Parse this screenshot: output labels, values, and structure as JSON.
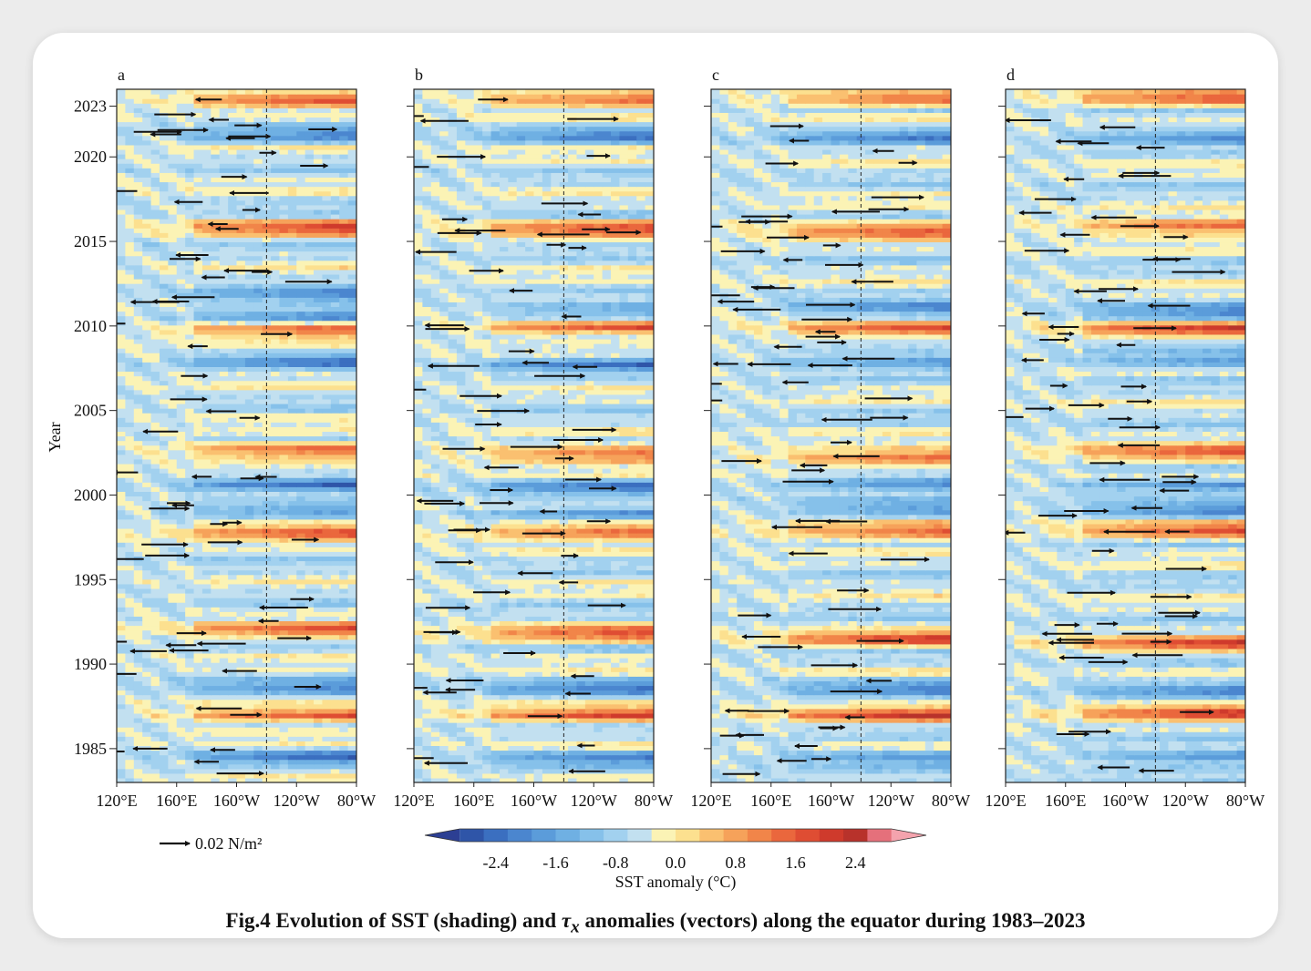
{
  "caption": {
    "prefix": "Fig.4 Evolution of SST (shading) and ",
    "symbol": "τ",
    "subscript": "x",
    "suffix": " anomalies (vectors) along the equator during 1983–2023"
  },
  "y_axis": {
    "label": "Year",
    "ticks": [
      "1985",
      "1990",
      "1995",
      "2000",
      "2005",
      "2010",
      "2015",
      "2020",
      "2023"
    ]
  },
  "x_axis": {
    "ticks": [
      "120°E",
      "160°E",
      "160°W",
      "120°W",
      "80°W"
    ]
  },
  "vector_key": {
    "label": "0.02 N/m²",
    "magnitude": 0.02
  },
  "colorbar": {
    "title": "SST anomaly (°C)",
    "tick_labels": [
      "-2.4",
      "-1.6",
      "-0.8",
      "0.0",
      "0.8",
      "1.6",
      "2.4"
    ],
    "colors": [
      "#2c3f93",
      "#2f55a8",
      "#3b6fc0",
      "#4b86cf",
      "#5b9cda",
      "#6fb0e3",
      "#86c1ea",
      "#a2d1ef",
      "#c2e0f0",
      "#fbf3b5",
      "#fce08f",
      "#fac070",
      "#f6a25a",
      "#f18549",
      "#ea673d",
      "#df4d33",
      "#cf3a2c",
      "#b8322b",
      "#e5707b",
      "#f4a3ad"
    ]
  },
  "chart_data": [
    {
      "type": "heatmap",
      "panel": "a",
      "x": [
        "120°E",
        "160°E",
        "160°W",
        "120°W",
        "80°W"
      ],
      "y_range": [
        1983,
        2024
      ],
      "dateline_lon": 180,
      "warm_events": [
        1987,
        1992,
        1997.9,
        2002.7,
        2009.8,
        2015.8,
        2023.5
      ],
      "cold_events": [
        1984.5,
        1988.6,
        1999.3,
        2000.6,
        2008,
        2010.7,
        2011.8,
        2021.3
      ]
    },
    {
      "type": "heatmap",
      "panel": "b",
      "x": [
        "120°E",
        "160°E",
        "160°W",
        "120°W",
        "80°W"
      ],
      "y_range": [
        1983,
        2024
      ],
      "dateline_lon": 180,
      "warm_events": [
        1987,
        1991.8,
        1997.9,
        2002.5,
        2009.9,
        2015.8,
        2023.5
      ],
      "cold_events": [
        1984.5,
        1988.6,
        1999,
        2000.5,
        2007.8,
        2010.9,
        2021.3
      ]
    },
    {
      "type": "heatmap",
      "panel": "c",
      "x": [
        "120°E",
        "160°E",
        "160°W",
        "120°W",
        "80°W"
      ],
      "y_range": [
        1983,
        2024
      ],
      "dateline_lon": 180,
      "warm_events": [
        1987,
        1991.5,
        1997.9,
        2002.3,
        2009.8,
        2015.7,
        2023.5
      ],
      "cold_events": [
        1984.5,
        1988.7,
        1999.2,
        2000.8,
        2008,
        2011,
        2021.3
      ]
    },
    {
      "type": "heatmap",
      "panel": "d",
      "x": [
        "120°E",
        "160°E",
        "160°W",
        "120°W",
        "80°W"
      ],
      "y_range": [
        1983,
        2024
      ],
      "dateline_lon": 180,
      "warm_events": [
        1987.2,
        1991.2,
        1997.9,
        2002.5,
        2009.8,
        2015.9,
        2023.5
      ],
      "cold_events": [
        1984.5,
        1988.6,
        1999.1,
        2000.6,
        2008,
        2010.8,
        2021.3
      ]
    }
  ]
}
